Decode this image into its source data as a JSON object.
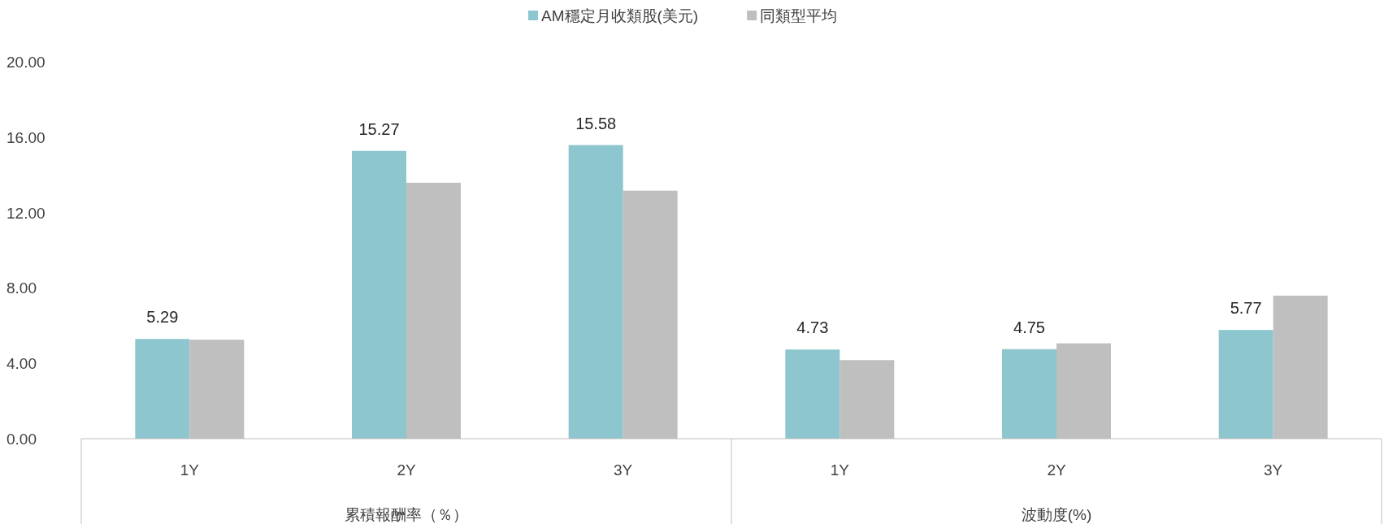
{
  "chart_data": {
    "type": "bar",
    "categories": [
      "1Y",
      "2Y",
      "3Y",
      "1Y",
      "2Y",
      "3Y"
    ],
    "series": [
      {
        "name": "AM穩定月收類股(美元)",
        "color": "#8dc6ce",
        "values": [
          5.29,
          15.27,
          15.58,
          4.73,
          4.75,
          5.77
        ],
        "value_labels": [
          "5.29",
          "15.27",
          "15.58",
          "4.73",
          "4.75",
          "5.77"
        ]
      },
      {
        "name": "同類型平均",
        "color": "#bfbfbf",
        "values": [
          5.25,
          13.58,
          13.16,
          4.17,
          5.06,
          7.59
        ]
      }
    ],
    "annotations": [
      "累積報酬率（％）",
      "波動度(%)"
    ],
    "ylim": [
      0,
      20
    ],
    "yticks": [
      {
        "value": 0,
        "label": "0.00"
      },
      {
        "value": 4,
        "label": "4.00"
      },
      {
        "value": 8,
        "label": "8.00"
      },
      {
        "value": 12,
        "label": "12.00"
      },
      {
        "value": 16,
        "label": "16.00"
      },
      {
        "value": 20,
        "label": "20.00"
      }
    ],
    "legend": "top",
    "grid": false
  }
}
